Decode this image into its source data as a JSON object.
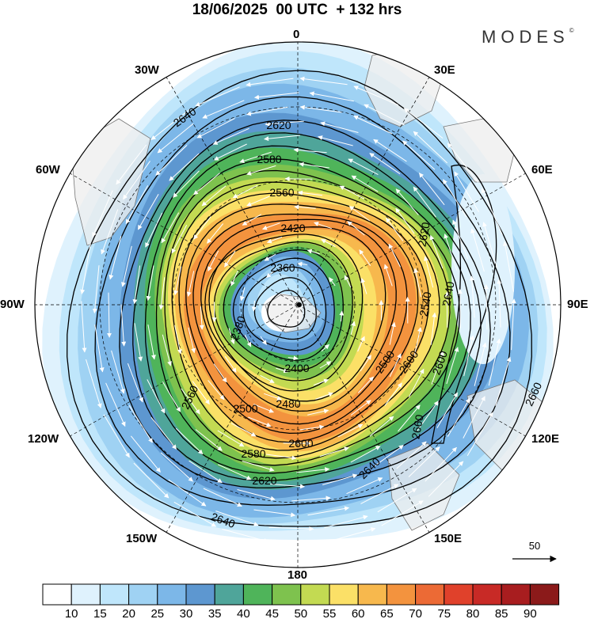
{
  "title": "18/06/2025  00 UTC  + 132 hrs",
  "brand": "MODES",
  "brand_mark": "©",
  "lon_labels": {
    "n": "0",
    "ne": "30E",
    "e2": "60E",
    "e": "90E",
    "se1": "120E",
    "se2": "150E",
    "s": "180",
    "sw2": "150W",
    "sw1": "120W",
    "w": "90W",
    "w2": "60W",
    "nw": "30W"
  },
  "contour_labels": [
    "2640",
    "2620",
    "2580",
    "2560",
    "2420",
    "2360",
    "2380",
    "2400",
    "2500",
    "2480",
    "2560",
    "2580",
    "2600",
    "2620",
    "2640",
    "2660",
    "2640",
    "2600",
    "2540",
    "2500",
    "2600",
    "2620",
    "2640",
    "2660"
  ],
  "reference_vector": {
    "label": "50"
  },
  "colorbar": {
    "ticks": [
      "10",
      "15",
      "20",
      "25",
      "30",
      "35",
      "40",
      "45",
      "50",
      "55",
      "60",
      "65",
      "70",
      "75",
      "80",
      "85",
      "90"
    ],
    "colors": [
      "#ffffff",
      "#dff2fd",
      "#bfe6fb",
      "#9fd2f3",
      "#7cb7e8",
      "#5d97d0",
      "#4fa59a",
      "#4fb45a",
      "#7ec24e",
      "#c3da52",
      "#fbe067",
      "#f7b84d",
      "#f3933e",
      "#ec6a35",
      "#e0412b",
      "#c82a26",
      "#a81d1f",
      "#8b1a1a"
    ]
  },
  "map_colors": {
    "land": "#eeeeee",
    "coast": "#777777",
    "contour": "#000000",
    "grid": "#000000"
  }
}
